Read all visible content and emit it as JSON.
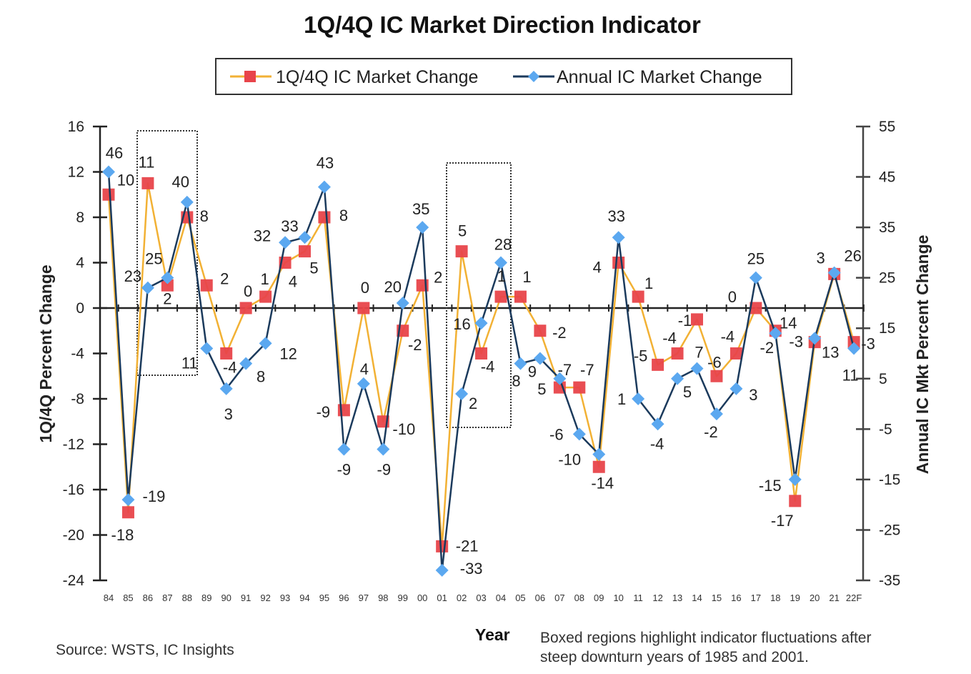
{
  "chart_data": {
    "type": "line",
    "title": "1Q/4Q IC Market Direction Indicator",
    "categories": [
      "84",
      "85",
      "86",
      "87",
      "88",
      "89",
      "90",
      "91",
      "92",
      "93",
      "94",
      "95",
      "96",
      "97",
      "98",
      "99",
      "00",
      "01",
      "02",
      "03",
      "04",
      "05",
      "06",
      "07",
      "08",
      "09",
      "10",
      "11",
      "12",
      "13",
      "14",
      "15",
      "16",
      "17",
      "18",
      "19",
      "20",
      "21",
      "22F"
    ],
    "series": [
      {
        "name": "1Q/4Q IC Market Change",
        "axis": "left",
        "marker": "square",
        "line_color": "#F2B134",
        "marker_color": "#E8444A",
        "values": [
          10,
          -18,
          11,
          2,
          8,
          2,
          -4,
          0,
          1,
          4,
          5,
          8,
          -9,
          0,
          -10,
          -2,
          2,
          -21,
          5,
          -4,
          1,
          1,
          -2,
          -7,
          -7,
          -14,
          4,
          1,
          -5,
          -4,
          -1,
          -6,
          -4,
          0,
          -2,
          -17,
          -3,
          3,
          -3
        ]
      },
      {
        "name": "Annual IC Market Change",
        "axis": "right",
        "marker": "diamond",
        "line_color": "#1B3A5C",
        "marker_color": "#5BA8F0",
        "values": [
          46,
          -19,
          23,
          25,
          40,
          11,
          3,
          8,
          12,
          32,
          33,
          43,
          -9,
          4,
          -9,
          20,
          35,
          -33,
          2,
          16,
          28,
          8,
          9,
          5,
          -6,
          -10,
          33,
          1,
          -4,
          5,
          7,
          -2,
          3,
          25,
          14,
          -15,
          13,
          26,
          11
        ]
      }
    ],
    "xlabel": "Year",
    "ylabel_left": "1Q/4Q Percent Change",
    "ylabel_right": "Annual IC Mkt Percent Change",
    "ylim_left": [
      -24,
      16
    ],
    "yticks_left": [
      "16",
      "12",
      "8",
      "4",
      "0",
      "-4",
      "-8",
      "-12",
      "-16",
      "-20",
      "-24"
    ],
    "ylim_right": [
      -35,
      55
    ],
    "yticks_right": [
      "55",
      "45",
      "35",
      "25",
      "15",
      "5",
      "-5",
      "-15",
      "-25",
      "-35"
    ],
    "grid": false,
    "legend_position": "top-center",
    "highlight_boxes": [
      {
        "from": "86",
        "to": "88"
      },
      {
        "from": "02",
        "to": "04"
      }
    ],
    "source": "Source: WSTS, IC Insights",
    "note_lines": [
      "Boxed  regions highlight indicator fluctuations after",
      "steep downturn years of 1985 and 2001."
    ]
  }
}
